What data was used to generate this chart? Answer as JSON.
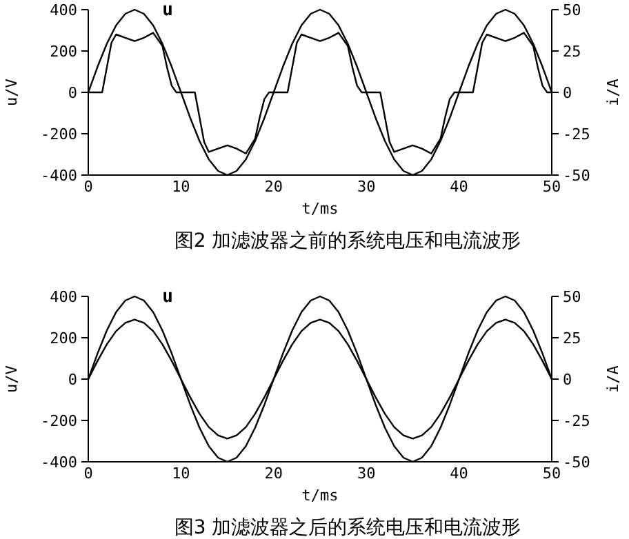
{
  "chart_data": [
    {
      "type": "line",
      "title": "图2  加滤波器之前的系统电压和电流波形",
      "xlabel": "t/ms",
      "ylabel": "u/V",
      "y2label": "i/A",
      "xlim": [
        0,
        50
      ],
      "ylim": [
        -400,
        400
      ],
      "y2lim": [
        -50,
        50
      ],
      "xticks": [
        0,
        10,
        20,
        30,
        40,
        50
      ],
      "yticks": [
        -400,
        -200,
        0,
        200,
        400
      ],
      "y2ticks": [
        -50,
        -25,
        0,
        25,
        50
      ],
      "grid": false,
      "marker": "none",
      "line_style": "solid",
      "series": [
        {
          "name": "u",
          "color": "#000000",
          "x": [
            0,
            1,
            2,
            3,
            4,
            5,
            6,
            7,
            8,
            9,
            10,
            11,
            12,
            13,
            14,
            15,
            16,
            17,
            18,
            19,
            20,
            21,
            22,
            23,
            24,
            25,
            26,
            27,
            28,
            29,
            30,
            31,
            32,
            33,
            34,
            35,
            36,
            37,
            38,
            39,
            40,
            41,
            42,
            43,
            44,
            45,
            46,
            47,
            48,
            49,
            50
          ],
          "values": [
            0,
            124,
            235,
            324,
            380,
            400,
            380,
            324,
            235,
            124,
            0,
            -124,
            -235,
            -324,
            -380,
            -400,
            -380,
            -324,
            -235,
            -124,
            0,
            124,
            235,
            324,
            380,
            400,
            380,
            324,
            235,
            124,
            0,
            -124,
            -235,
            -324,
            -380,
            -400,
            -380,
            -324,
            -235,
            -124,
            0,
            124,
            235,
            324,
            380,
            400,
            380,
            324,
            235,
            124,
            0
          ]
        },
        {
          "color": "#000000",
          "axis": "y2",
          "x": [
            0,
            1.5,
            2,
            2.5,
            3,
            4,
            5,
            6,
            7,
            8,
            8.5,
            9,
            9.5,
            11.5,
            12,
            12.5,
            13,
            14,
            15,
            16,
            17,
            18,
            18.5,
            19,
            19.5,
            21.5,
            22,
            22.5,
            23,
            24,
            25,
            26,
            27,
            28,
            28.5,
            29,
            29.5,
            31.5,
            32,
            32.5,
            33,
            34,
            35,
            36,
            37,
            38,
            38.5,
            39,
            39.5,
            41.5,
            42,
            42.5,
            43,
            44,
            45,
            46,
            47,
            48,
            48.5,
            49,
            49.5,
            50
          ],
          "values": [
            0,
            0,
            15,
            30,
            35,
            33,
            31,
            33,
            36,
            28,
            15,
            4,
            0,
            0,
            -15,
            -30,
            -36,
            -34,
            -32,
            -34,
            -37,
            -28,
            -15,
            -4,
            0,
            0,
            15,
            30,
            35,
            33,
            31,
            33,
            36,
            28,
            15,
            4,
            0,
            0,
            -15,
            -30,
            -36,
            -34,
            -32,
            -34,
            -37,
            -28,
            -15,
            -4,
            0,
            0,
            15,
            30,
            35,
            33,
            31,
            33,
            36,
            28,
            15,
            4,
            0,
            0
          ]
        }
      ]
    },
    {
      "type": "line",
      "title": "图3  加滤波器之后的系统电压和电流波形",
      "xlabel": "t/ms",
      "ylabel": "u/V",
      "y2label": "i/A",
      "xlim": [
        0,
        50
      ],
      "ylim": [
        -400,
        400
      ],
      "y2lim": [
        -50,
        50
      ],
      "xticks": [
        0,
        10,
        20,
        30,
        40,
        50
      ],
      "yticks": [
        -400,
        -200,
        0,
        200,
        400
      ],
      "y2ticks": [
        -50,
        -25,
        0,
        25,
        50
      ],
      "grid": false,
      "marker": "none",
      "line_style": "solid",
      "series": [
        {
          "name": "u",
          "color": "#000000",
          "x": [
            0,
            1,
            2,
            3,
            4,
            5,
            6,
            7,
            8,
            9,
            10,
            11,
            12,
            13,
            14,
            15,
            16,
            17,
            18,
            19,
            20,
            21,
            22,
            23,
            24,
            25,
            26,
            27,
            28,
            29,
            30,
            31,
            32,
            33,
            34,
            35,
            36,
            37,
            38,
            39,
            40,
            41,
            42,
            43,
            44,
            45,
            46,
            47,
            48,
            49,
            50
          ],
          "values": [
            0,
            124,
            235,
            324,
            380,
            400,
            380,
            324,
            235,
            124,
            0,
            -124,
            -235,
            -324,
            -380,
            -400,
            -380,
            -324,
            -235,
            -124,
            0,
            124,
            235,
            324,
            380,
            400,
            380,
            324,
            235,
            124,
            0,
            -124,
            -235,
            -324,
            -380,
            -400,
            -380,
            -324,
            -235,
            -124,
            0,
            124,
            235,
            324,
            380,
            400,
            380,
            324,
            235,
            124,
            0
          ]
        },
        {
          "color": "#000000",
          "axis": "y2",
          "x": [
            0,
            1,
            2,
            3,
            4,
            5,
            6,
            7,
            8,
            9,
            10,
            11,
            12,
            13,
            14,
            15,
            16,
            17,
            18,
            19,
            20,
            21,
            22,
            23,
            24,
            25,
            26,
            27,
            28,
            29,
            30,
            31,
            32,
            33,
            34,
            35,
            36,
            37,
            38,
            39,
            40,
            41,
            42,
            43,
            44,
            45,
            46,
            47,
            48,
            49,
            50
          ],
          "values": [
            0,
            11,
            21,
            29,
            34,
            36,
            34,
            29,
            21,
            11,
            0,
            -11,
            -21,
            -29,
            -34,
            -36,
            -34,
            -29,
            -21,
            -11,
            0,
            11,
            21,
            29,
            34,
            36,
            34,
            29,
            21,
            11,
            0,
            -11,
            -21,
            -29,
            -34,
            -36,
            -34,
            -29,
            -21,
            -11,
            0,
            11,
            21,
            29,
            34,
            36,
            34,
            29,
            21,
            11,
            0
          ]
        }
      ]
    }
  ]
}
